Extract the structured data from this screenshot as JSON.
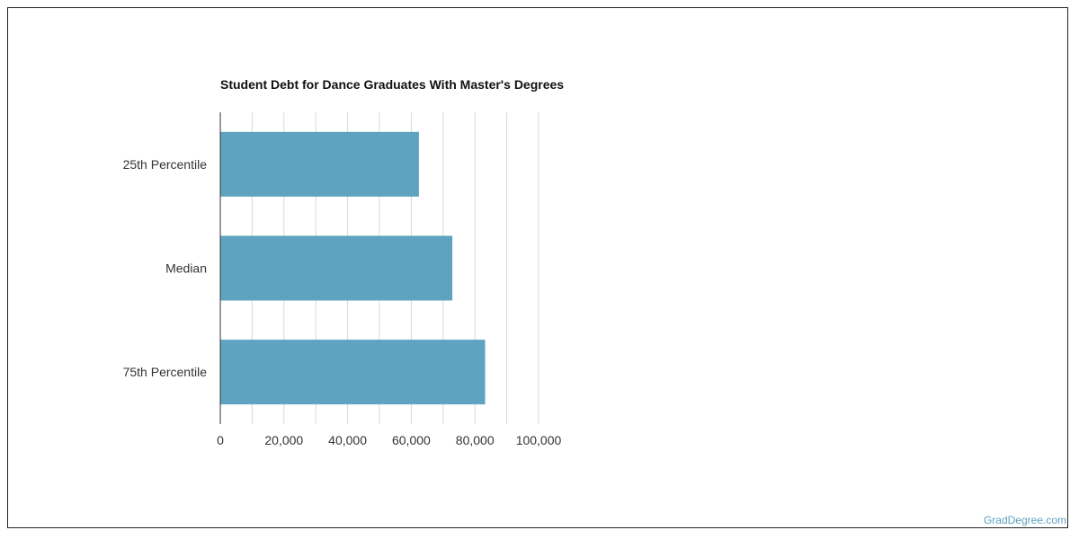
{
  "credit": "GradDegree.com",
  "colors": {
    "bar": "#5ea3bf",
    "grid": "#d9d9d9",
    "axis": "#333333"
  },
  "chart_data": {
    "type": "bar",
    "orientation": "horizontal",
    "title": "Student Debt for Dance Graduates With Master's Degrees",
    "xlabel": "",
    "ylabel": "",
    "categories": [
      "25th Percentile",
      "Median",
      "75th Percentile"
    ],
    "values": [
      62400,
      72900,
      83200
    ],
    "xlim": [
      0,
      100000
    ],
    "x_ticks": [
      0,
      20000,
      40000,
      60000,
      80000,
      100000
    ],
    "x_tick_labels": [
      "0",
      "20,000",
      "40,000",
      "60,000",
      "80,000",
      "100,000"
    ],
    "grid": true,
    "legend": "none"
  }
}
